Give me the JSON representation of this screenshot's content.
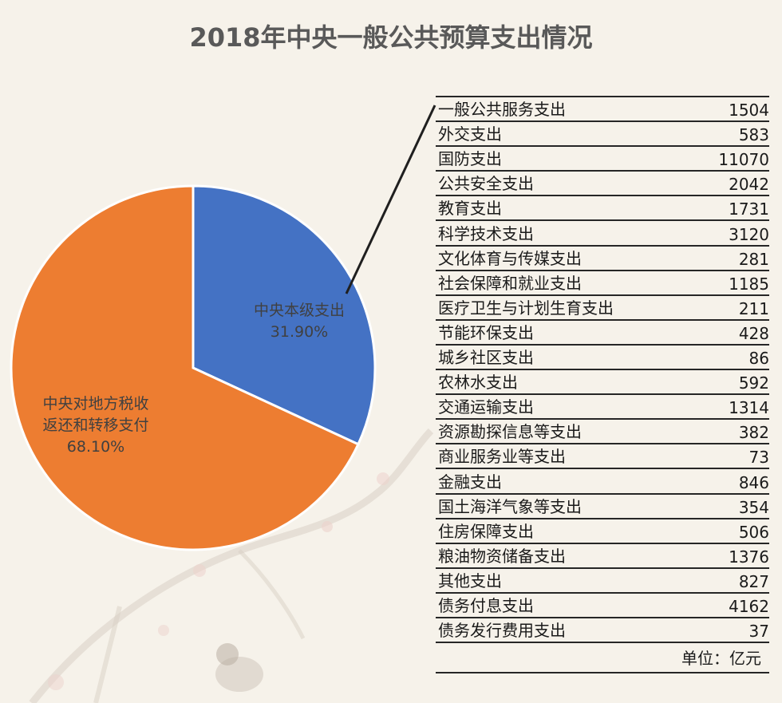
{
  "chart_data": [
    {
      "type": "pie",
      "title": "2018年中央一般公共预算支出情况",
      "slices": [
        {
          "label_lines": [
            "中央本级支出"
          ],
          "percent_label": "31.90%",
          "value": 31.9,
          "color": "#4472c4"
        },
        {
          "label_lines": [
            "中央对地方税收",
            "返还和转移支付"
          ],
          "percent_label": "68.10%",
          "value": 68.1,
          "color": "#ed7d31"
        }
      ]
    },
    {
      "type": "table",
      "rows": [
        {
          "name": "一般公共服务支出",
          "value": "1504"
        },
        {
          "name": "外交支出",
          "value": "583"
        },
        {
          "name": "国防支出",
          "value": "11070"
        },
        {
          "name": "公共安全支出",
          "value": "2042"
        },
        {
          "name": "教育支出",
          "value": "1731"
        },
        {
          "name": "科学技术支出",
          "value": "3120"
        },
        {
          "name": "文化体育与传媒支出",
          "value": "281"
        },
        {
          "name": "社会保障和就业支出",
          "value": "1185"
        },
        {
          "name": "医疗卫生与计划生育支出",
          "value": "211"
        },
        {
          "name": "节能环保支出",
          "value": "428"
        },
        {
          "name": "城乡社区支出",
          "value": "86"
        },
        {
          "name": "农林水支出",
          "value": "592"
        },
        {
          "name": "交通运输支出",
          "value": "1314"
        },
        {
          "name": "资源勘探信息等支出",
          "value": "382"
        },
        {
          "name": "商业服务业等支出",
          "value": "73"
        },
        {
          "name": "金融支出",
          "value": "846"
        },
        {
          "name": "国土海洋气象等支出",
          "value": "354"
        },
        {
          "name": "住房保障支出",
          "value": "506"
        },
        {
          "name": "粮油物资储备支出",
          "value": "1376"
        },
        {
          "name": "其他支出",
          "value": "827"
        },
        {
          "name": "债务付息支出",
          "value": "4162"
        },
        {
          "name": "债务发行费用支出",
          "value": "37"
        }
      ],
      "unit": "单位：亿元"
    }
  ]
}
